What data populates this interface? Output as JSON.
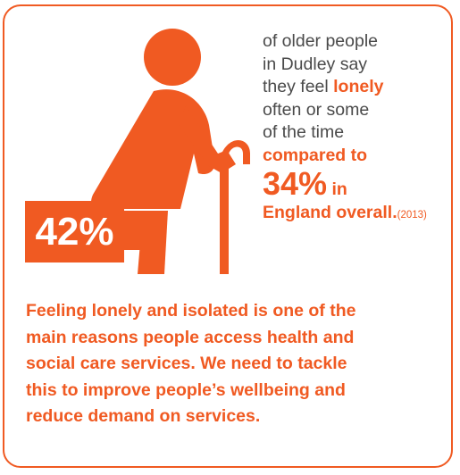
{
  "colors": {
    "accent": "#f05a22",
    "text": "#4a4a4a",
    "background": "#ffffff"
  },
  "icon": "elderly-person-with-cane-icon",
  "stat": {
    "percentage": "42%",
    "line1": "of older people",
    "line2": "in Dudley say",
    "line3_pre": "they feel ",
    "line3_highlight": "lonely",
    "line4": "often or some",
    "line5": "of the time",
    "compared": "compared to",
    "england_pct": "34%",
    "england_in": " in",
    "england_overall": "England overall.",
    "year": "(2013)"
  },
  "message": {
    "line1": "Feeling lonely and isolated is one of the",
    "line2": "main reasons people access health and",
    "line3": "social care services. We need to tackle",
    "line4": "this to improve people’s wellbeing and",
    "line5": "reduce demand on services."
  }
}
